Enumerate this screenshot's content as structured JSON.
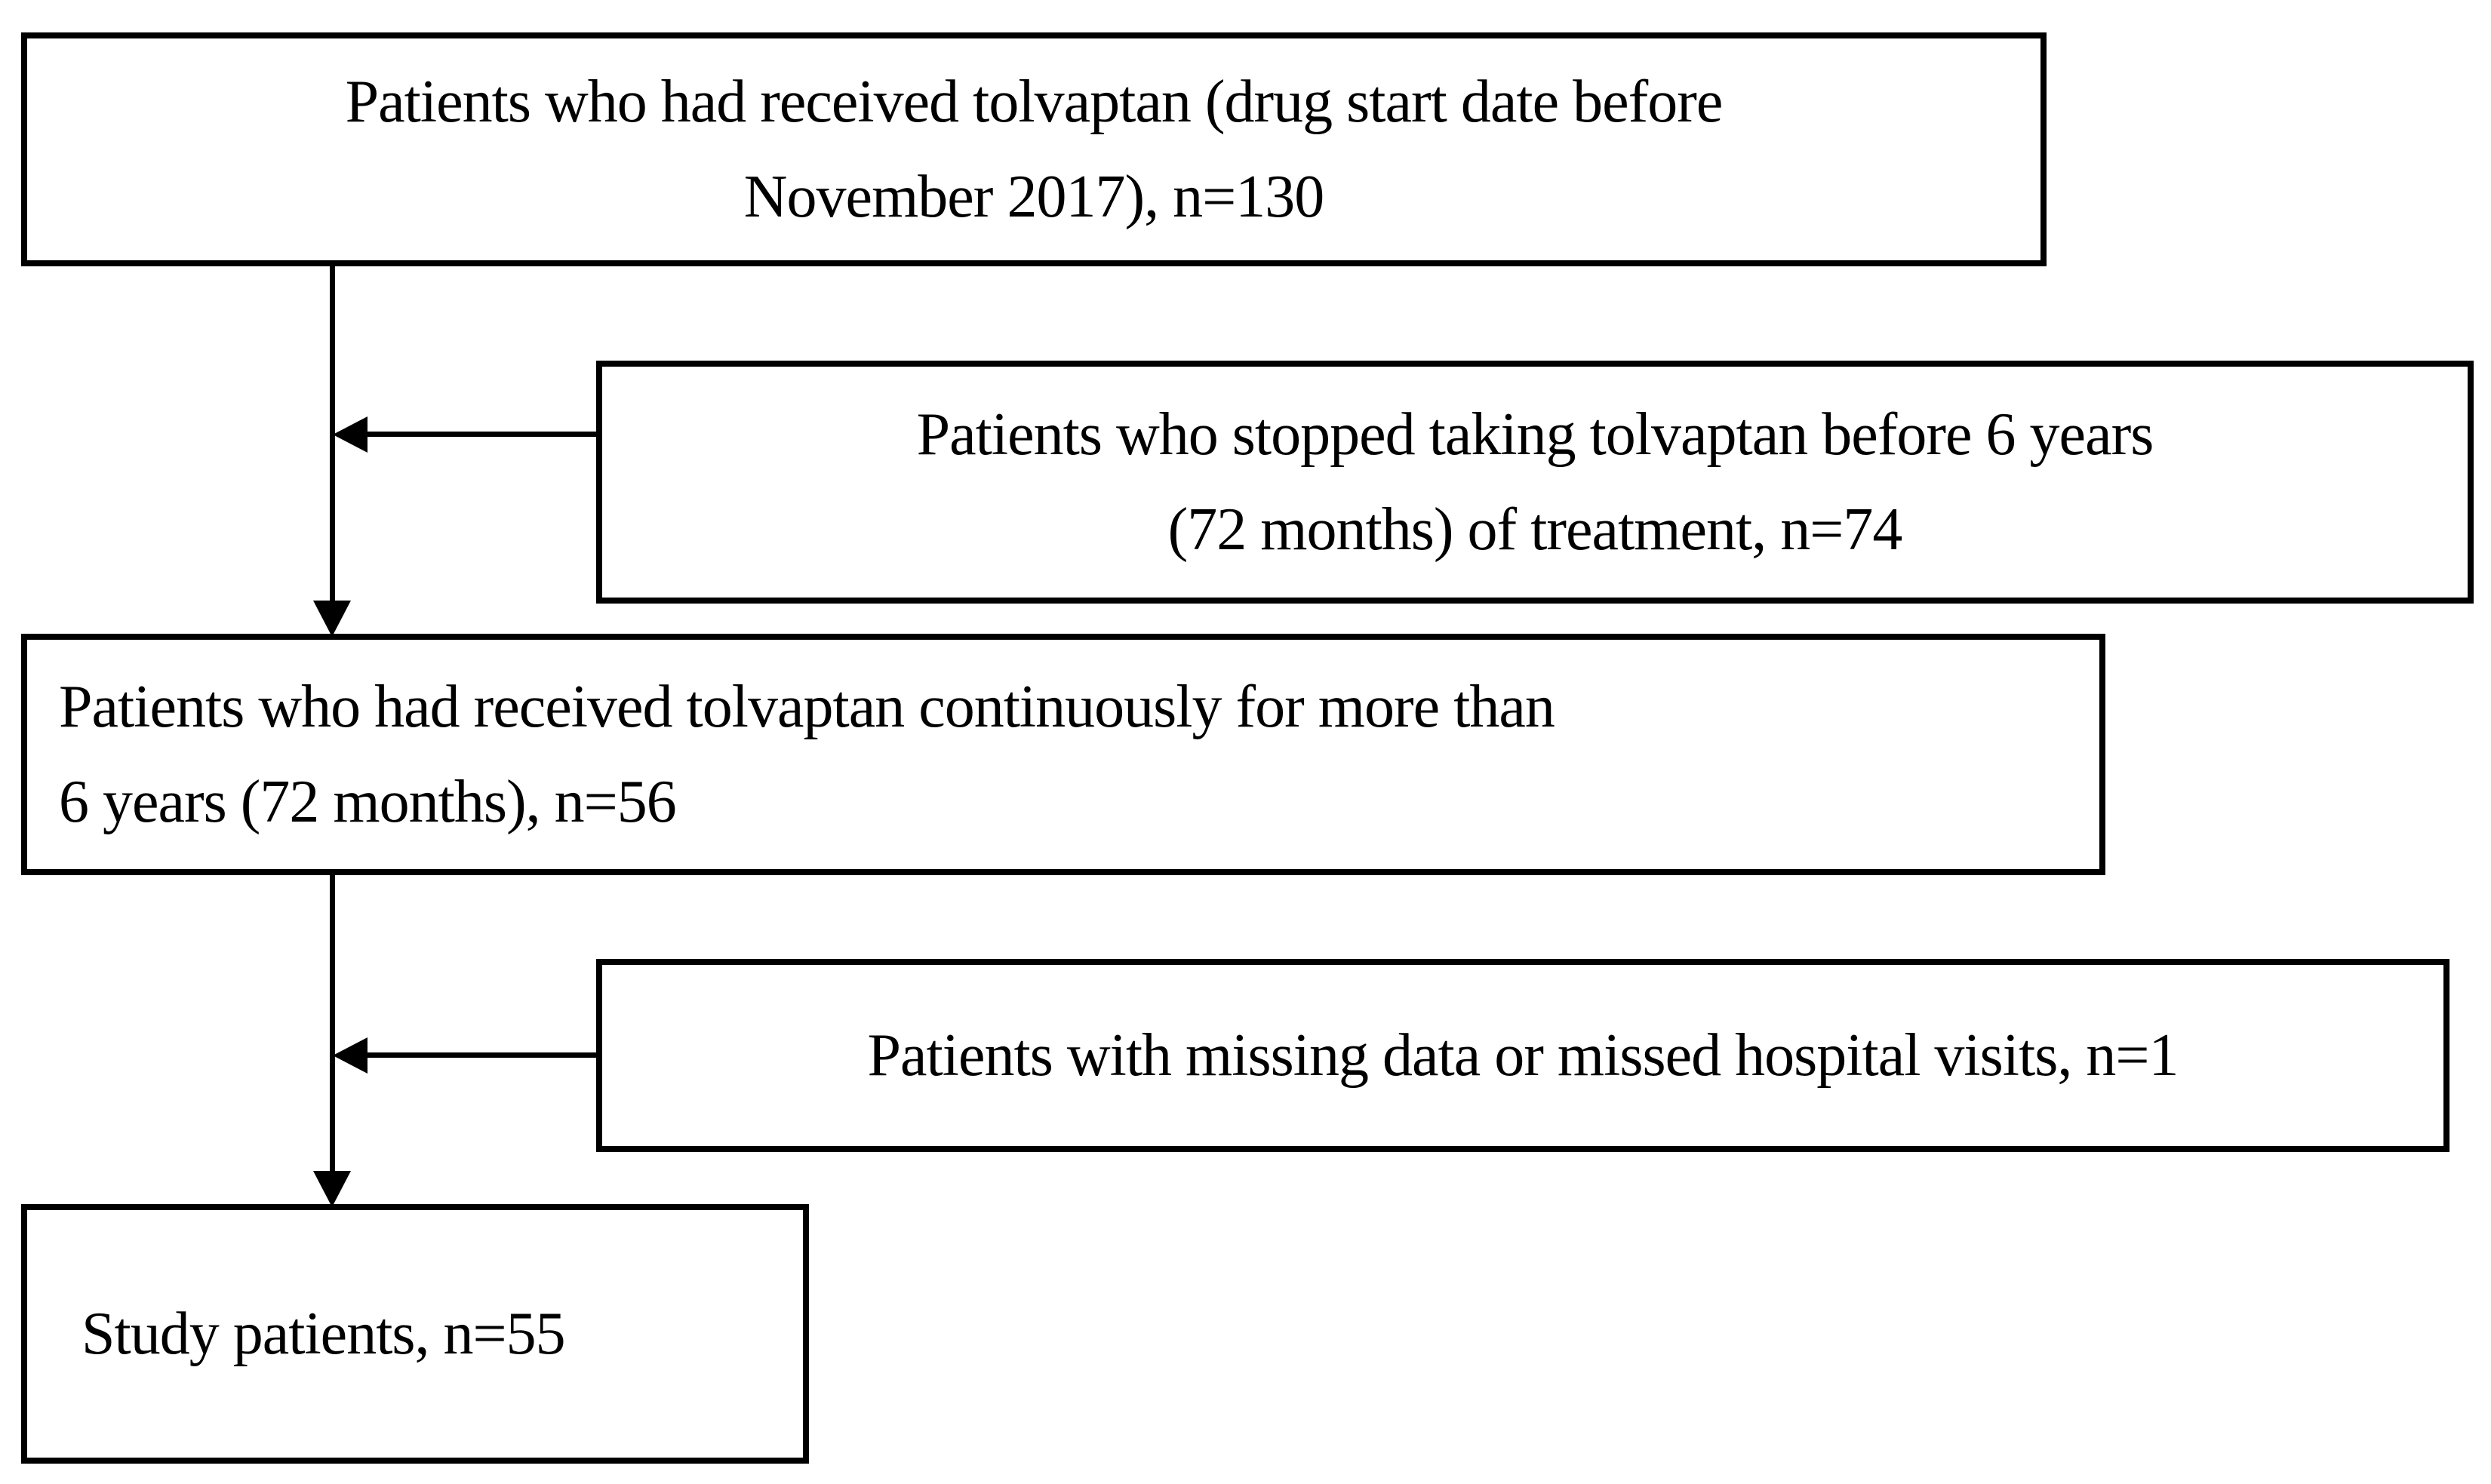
{
  "diagram": {
    "background_color": "#ffffff",
    "line_color": "#000000",
    "text_color": "#000000",
    "boxes": [
      {
        "id": "received-tolvaptan",
        "n": 130,
        "lines": [
          "Patients who had received tolvaptan (drug start date before",
          "November 2017), n=130"
        ]
      },
      {
        "id": "stopped-tolvaptan-before-6-years",
        "n": 74,
        "lines": [
          "Patients who stopped taking tolvaptan before 6 years",
          "(72 months) of treatment, n=74"
        ]
      },
      {
        "id": "received-tolvaptan-continuously",
        "n": 56,
        "lines": [
          "Patients who had received tolvaptan continuously for more than",
          "6 years (72 months), n=56"
        ]
      },
      {
        "id": "missing-data-or-missed-visits",
        "n": 1,
        "lines": [
          "Patients with missing data or missed hospital visits, n=1"
        ]
      },
      {
        "id": "study-patients",
        "n": 55,
        "lines": [
          "Study patients, n=55"
        ]
      }
    ]
  }
}
